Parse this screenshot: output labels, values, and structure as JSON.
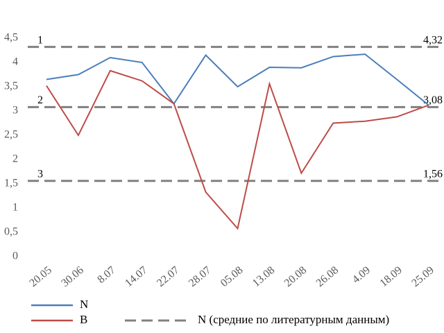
{
  "chart_data": {
    "type": "line",
    "categories": [
      "20.05",
      "30.06",
      "8.07",
      "14.07",
      "22.07",
      "28.07",
      "05.08",
      "13.08",
      "20.08",
      "26.08",
      "4.09",
      "18.09",
      "25.09"
    ],
    "series": [
      {
        "name": "N",
        "color": "#4a7ebb",
        "values": [
          3.65,
          3.75,
          4.1,
          4.0,
          3.15,
          4.15,
          3.5,
          3.9,
          3.89,
          4.12,
          4.17,
          3.65,
          3.12
        ]
      },
      {
        "name": "B",
        "color": "#be4b48",
        "values": [
          3.52,
          2.5,
          3.83,
          3.62,
          3.15,
          1.33,
          0.58,
          3.56,
          1.72,
          2.75,
          2.79,
          2.88,
          3.12
        ]
      }
    ],
    "reference_lines": {
      "name": "N (средние по литературным данным)",
      "color": "#808080",
      "values": [
        4.32,
        3.08,
        1.56
      ],
      "value_labels": [
        "4,32",
        "3,08",
        "1,56"
      ],
      "line_labels": [
        "1",
        "2",
        "3"
      ]
    },
    "ylim": [
      0,
      4.5
    ],
    "yticks": [
      0,
      {
        "value": 0.5,
        "label": "0,5"
      },
      1,
      {
        "value": 1.5,
        "label": "1,5"
      },
      2,
      {
        "value": 2.5,
        "label": "2,5"
      },
      3,
      {
        "value": 3.5,
        "label": "3,5"
      },
      4,
      {
        "value": 4.5,
        "label": "4,5"
      }
    ],
    "grid": false
  }
}
